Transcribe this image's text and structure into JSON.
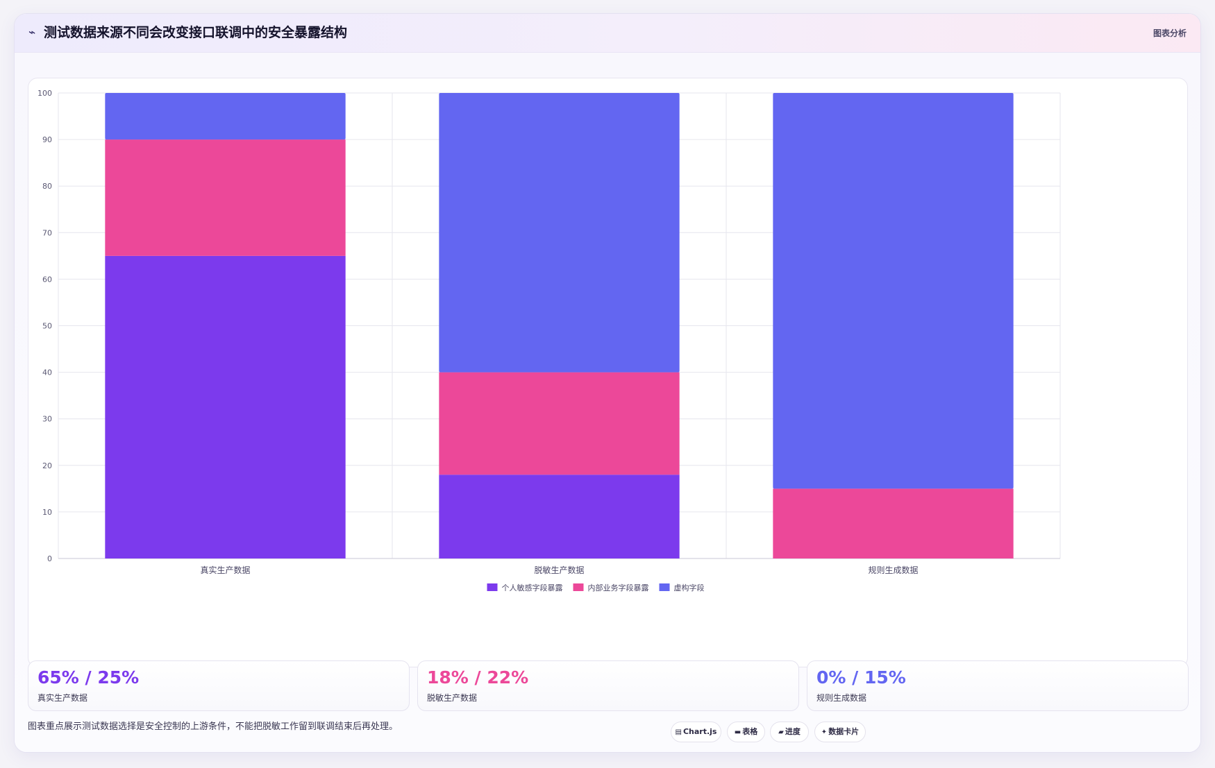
{
  "header": {
    "icon": "chart-icon",
    "icon_glyph": "⌁",
    "title": "测试数据来源不同会改变接口联调中的安全暴露结构",
    "action_label": "图表分析"
  },
  "colors": {
    "personal": "#7c3aed",
    "internal": "#ec4899",
    "fictional": "#6366f1",
    "grid": "#e6e6ee",
    "axis_text": "#5a5873"
  },
  "chart_data": {
    "type": "bar",
    "stacked": true,
    "categories": [
      "真实生产数据",
      "脱敏生产数据",
      "规则生成数据"
    ],
    "series": [
      {
        "name": "个人敏感字段暴露",
        "values": [
          65,
          18,
          0
        ]
      },
      {
        "name": "内部业务字段暴露",
        "values": [
          25,
          22,
          15
        ]
      },
      {
        "name": "虚构字段",
        "values": [
          10,
          60,
          85
        ]
      }
    ],
    "ylim": [
      0,
      100
    ],
    "yticks": [
      0,
      10,
      20,
      30,
      40,
      50,
      60,
      70,
      80,
      90,
      100
    ],
    "grid": true,
    "legend_position": "bottom-center"
  },
  "stats": [
    {
      "value": "65% / 25%",
      "label": "真实生产数据",
      "color": "#7c3aed"
    },
    {
      "value": "18% / 22%",
      "label": "脱敏生产数据",
      "color": "#ec4899"
    },
    {
      "value": "0% / 15%",
      "label": "规则生成数据",
      "color": "#6366f1"
    }
  ],
  "footnote": "图表重点展示测试数据选择是安全控制的上游条件，不能把脱敏工作留到联调结束后再处理。",
  "chips": [
    {
      "icon": "chart-icon",
      "glyph": "▤",
      "label": "Chart.js"
    },
    {
      "icon": "table-icon",
      "glyph": "▬",
      "label": "表格"
    },
    {
      "icon": "progress-icon",
      "glyph": "▰",
      "label": "进度"
    },
    {
      "icon": "data-card-icon",
      "glyph": "✦",
      "label": "数据卡片"
    }
  ]
}
